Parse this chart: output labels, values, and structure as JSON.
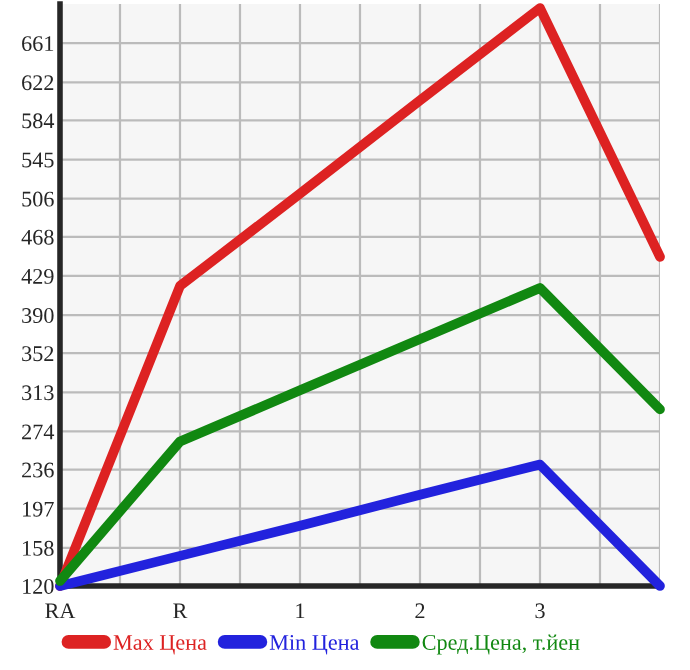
{
  "chart_data": {
    "type": "line",
    "categories": [
      "RA",
      "R",
      "1",
      "2",
      "3",
      null
    ],
    "series": [
      {
        "name": "Max Цена",
        "color": "#dd2222",
        "values": [
          120,
          419,
          511,
          604,
          696,
          448
        ]
      },
      {
        "name": "Min Цена",
        "color": "#2222dd",
        "values": [
          120,
          150,
          180,
          211,
          241,
          120
        ]
      },
      {
        "name": "Сред.Цена, т.йен",
        "color": "#118811",
        "values": [
          125,
          264,
          315,
          366,
          417,
          296
        ]
      }
    ],
    "ylim": [
      120,
      700
    ],
    "yticks": [
      120,
      158,
      197,
      236,
      274,
      313,
      352,
      390,
      429,
      468,
      506,
      545,
      584,
      622,
      661
    ],
    "grid": true,
    "legend": "bottom",
    "marker": "none",
    "line_style": "solid"
  }
}
